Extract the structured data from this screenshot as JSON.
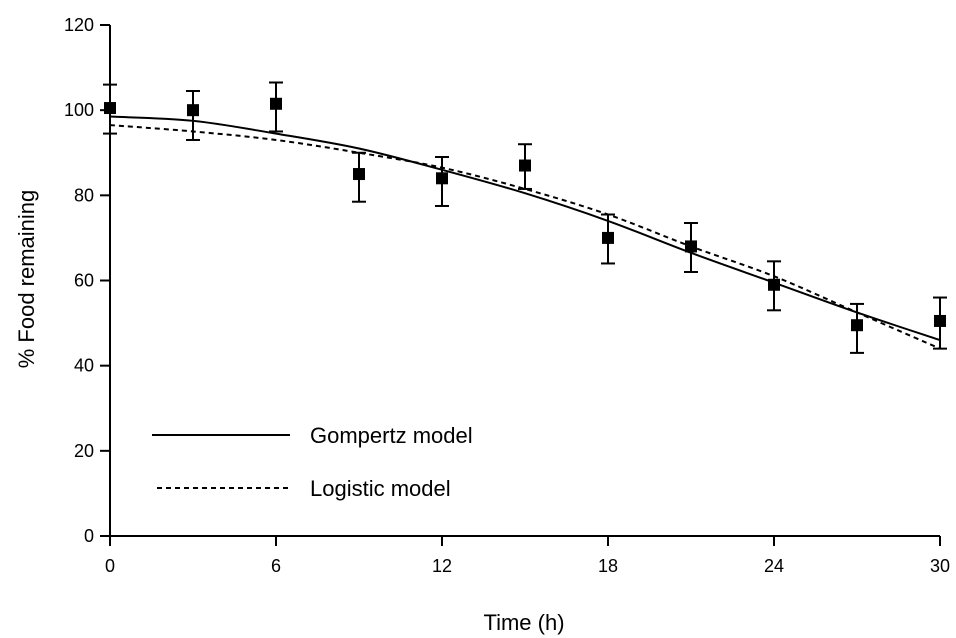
{
  "chart_data": {
    "type": "scatter",
    "title": "",
    "xlabel": "Time (h)",
    "ylabel": "% Food remaining",
    "xlim": [
      0,
      30
    ],
    "ylim": [
      0,
      120
    ],
    "xticks": [
      "0",
      "6",
      "12",
      "18",
      "24",
      "30"
    ],
    "yticks": [
      "0",
      "20",
      "40",
      "60",
      "80",
      "100",
      "120"
    ],
    "grid": false,
    "legend_position": "bottom-left",
    "observed": {
      "x": [
        0,
        3,
        6,
        9,
        12,
        15,
        18,
        21,
        24,
        27,
        30
      ],
      "y": [
        100.5,
        100,
        101.5,
        85,
        84,
        87,
        70,
        68,
        59,
        49.5,
        50.5
      ],
      "err_low": [
        94.5,
        93,
        95,
        78.5,
        77.5,
        81.5,
        64,
        62,
        53,
        43,
        44
      ],
      "err_high": [
        106,
        104.5,
        106.5,
        90,
        89,
        92,
        75.5,
        73.5,
        64.5,
        54.5,
        56
      ],
      "marker": "square",
      "color": "#000000"
    },
    "series": [
      {
        "name": "Gompertz model",
        "style": "solid",
        "color": "#000000",
        "x": [
          0,
          3,
          6,
          9,
          12,
          15,
          18,
          21,
          24,
          27,
          30
        ],
        "y": [
          98.5,
          97.5,
          94.5,
          91,
          86,
          80.5,
          74,
          66.5,
          59.5,
          52.5,
          46
        ]
      },
      {
        "name": "Logistic model",
        "style": "dashed",
        "color": "#000000",
        "x": [
          0,
          3,
          6,
          9,
          12,
          15,
          18,
          21,
          24,
          27,
          30
        ],
        "y": [
          96.5,
          95,
          93,
          90,
          86.5,
          81.5,
          75.5,
          68,
          61,
          52.5,
          44
        ]
      }
    ]
  }
}
